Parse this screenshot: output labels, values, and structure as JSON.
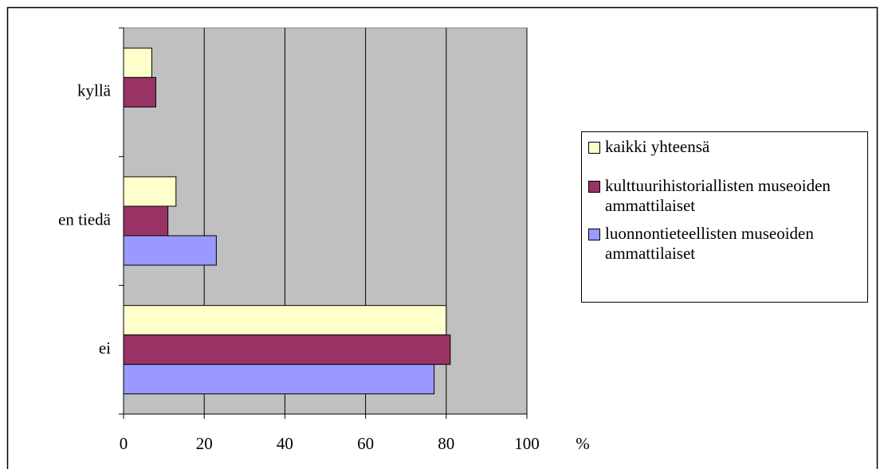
{
  "chart_data": {
    "type": "hbar",
    "categories": [
      "kyllä",
      "en tiedä",
      "ei"
    ],
    "series": [
      {
        "name": "kaikki yhteensä",
        "color": "#FFFFCC",
        "values": [
          7,
          13,
          80
        ]
      },
      {
        "name": "kulttuurihistoriallisten museoiden ammattilaiset",
        "color": "#993366",
        "values": [
          8,
          11,
          81
        ]
      },
      {
        "name": "luonnontieteellisten museoiden ammattilaiset",
        "color": "#9999FF",
        "values": [
          0,
          23,
          77
        ]
      }
    ],
    "xlabel": "%",
    "xlim": [
      0,
      100
    ],
    "xticks": [
      0,
      20,
      40,
      60,
      80,
      100
    ],
    "grid": true,
    "plot_background": "#C0C0C0",
    "legend": "right"
  }
}
